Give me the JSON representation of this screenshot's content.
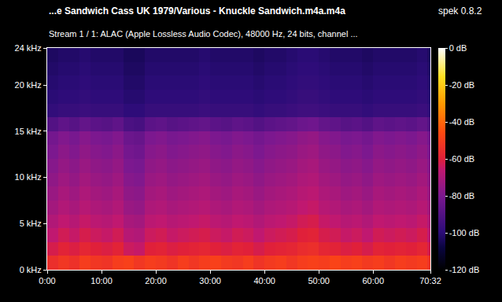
{
  "chart_data": {
    "type": "heatmap",
    "title": "...e Sandwich Cass UK 1979/Various - Knuckle Sandwich.m4a.m4a",
    "subtitle": "Stream 1 / 1: ALAC (Apple Lossless Audio Codec), 48000 Hz, 24 bits, channel ...",
    "annotations": [
      "spek 0.8.2"
    ],
    "x_bins": [
      0,
      120,
      240,
      360,
      480,
      600,
      720,
      840,
      960,
      1080,
      1200,
      1320,
      1440,
      1560,
      1680,
      1800,
      1920,
      2040,
      2160,
      2280,
      2400,
      2520,
      2640,
      2760,
      2880,
      3000,
      3120,
      3240,
      3360,
      3480,
      3600,
      3720,
      3840,
      3960,
      4080,
      4200,
      4232
    ],
    "y_bins": [
      0,
      1.5,
      3,
      4.5,
      6,
      7.5,
      9,
      10.5,
      12,
      13.5,
      15,
      16.5,
      18,
      19.5,
      21,
      22.5,
      24
    ],
    "cells": [
      [
        -55,
        -52,
        -54,
        -50,
        -52,
        -53,
        -50,
        -49,
        -52,
        -50,
        -51,
        -53,
        -50,
        -52,
        -50,
        -49,
        -51,
        -52,
        -50,
        -53,
        -51,
        -50,
        -52,
        -50,
        -49,
        -50,
        -48,
        -50,
        -49,
        -51,
        -50,
        -52,
        -50,
        -51,
        -50,
        -53
      ],
      [
        -62,
        -59,
        -61,
        -58,
        -60,
        -61,
        -59,
        -64,
        -65,
        -60,
        -59,
        -61,
        -60,
        -59,
        -58,
        -60,
        -61,
        -59,
        -60,
        -62,
        -60,
        -59,
        -58,
        -56,
        -55,
        -58,
        -59,
        -61,
        -60,
        -62,
        -59,
        -60,
        -59,
        -60,
        -58,
        -62
      ],
      [
        -66,
        -63,
        -65,
        -62,
        -64,
        -65,
        -63,
        -68,
        -69,
        -64,
        -63,
        -65,
        -64,
        -63,
        -62,
        -64,
        -65,
        -63,
        -64,
        -66,
        -64,
        -63,
        -62,
        -60,
        -59,
        -62,
        -63,
        -65,
        -64,
        -66,
        -63,
        -64,
        -63,
        -64,
        -62,
        -66
      ],
      [
        -69,
        -66,
        -68,
        -65,
        -67,
        -68,
        -66,
        -71,
        -72,
        -67,
        -66,
        -68,
        -67,
        -66,
        -65,
        -67,
        -68,
        -66,
        -67,
        -69,
        -67,
        -66,
        -65,
        -63,
        -62,
        -65,
        -66,
        -68,
        -67,
        -69,
        -66,
        -67,
        -66,
        -67,
        -65,
        -69
      ],
      [
        -72,
        -69,
        -71,
        -68,
        -70,
        -71,
        -69,
        -74,
        -75,
        -70,
        -69,
        -71,
        -70,
        -69,
        -68,
        -70,
        -71,
        -69,
        -70,
        -72,
        -70,
        -69,
        -68,
        -66,
        -65,
        -68,
        -69,
        -71,
        -70,
        -72,
        -69,
        -70,
        -69,
        -70,
        -68,
        -72
      ],
      [
        -74,
        -71,
        -73,
        -70,
        -72,
        -73,
        -71,
        -76,
        -77,
        -72,
        -71,
        -73,
        -72,
        -71,
        -70,
        -72,
        -73,
        -71,
        -72,
        -74,
        -72,
        -71,
        -70,
        -68,
        -67,
        -70,
        -71,
        -73,
        -72,
        -74,
        -71,
        -72,
        -71,
        -72,
        -70,
        -74
      ],
      [
        -76,
        -73,
        -75,
        -72,
        -74,
        -75,
        -73,
        -78,
        -79,
        -74,
        -73,
        -75,
        -74,
        -73,
        -72,
        -74,
        -75,
        -73,
        -74,
        -76,
        -74,
        -73,
        -72,
        -70,
        -69,
        -72,
        -73,
        -75,
        -74,
        -76,
        -73,
        -74,
        -73,
        -74,
        -72,
        -76
      ],
      [
        -78,
        -75,
        -77,
        -74,
        -76,
        -77,
        -75,
        -80,
        -81,
        -76,
        -75,
        -77,
        -76,
        -75,
        -74,
        -76,
        -77,
        -75,
        -76,
        -78,
        -76,
        -75,
        -74,
        -72,
        -71,
        -74,
        -75,
        -77,
        -76,
        -78,
        -75,
        -76,
        -75,
        -76,
        -74,
        -78
      ],
      [
        -80,
        -77,
        -79,
        -76,
        -78,
        -79,
        -77,
        -82,
        -83,
        -78,
        -77,
        -79,
        -78,
        -77,
        -76,
        -78,
        -79,
        -77,
        -78,
        -80,
        -78,
        -77,
        -76,
        -74,
        -73,
        -76,
        -77,
        -79,
        -78,
        -80,
        -77,
        -78,
        -77,
        -78,
        -76,
        -80
      ],
      [
        -82,
        -79,
        -81,
        -78,
        -80,
        -81,
        -79,
        -84,
        -85,
        -80,
        -79,
        -81,
        -80,
        -79,
        -78,
        -80,
        -81,
        -79,
        -80,
        -82,
        -80,
        -79,
        -78,
        -76,
        -75,
        -78,
        -79,
        -81,
        -80,
        -82,
        -79,
        -80,
        -79,
        -80,
        -78,
        -82
      ],
      [
        -90,
        -87,
        -89,
        -86,
        -88,
        -89,
        -87,
        -92,
        -93,
        -88,
        -87,
        -89,
        -88,
        -87,
        -86,
        -88,
        -89,
        -87,
        -88,
        -90,
        -88,
        -87,
        -86,
        -84,
        -83,
        -86,
        -87,
        -89,
        -88,
        -90,
        -87,
        -88,
        -87,
        -88,
        -86,
        -90
      ],
      [
        -98,
        -97,
        -97,
        -96,
        -97,
        -97,
        -97,
        -99,
        -99,
        -97,
        -97,
        -97,
        -97,
        -97,
        -96,
        -97,
        -97,
        -97,
        -97,
        -98,
        -97,
        -97,
        -96,
        -95,
        -95,
        -96,
        -97,
        -97,
        -97,
        -98,
        -97,
        -97,
        -97,
        -97,
        -96,
        -98
      ],
      [
        -100,
        -99,
        -99,
        -98,
        -99,
        -99,
        -99,
        -101,
        -101,
        -99,
        -99,
        -99,
        -99,
        -99,
        -98,
        -99,
        -99,
        -99,
        -99,
        -100,
        -99,
        -99,
        -98,
        -97,
        -97,
        -98,
        -99,
        -99,
        -99,
        -100,
        -99,
        -99,
        -99,
        -99,
        -98,
        -100
      ],
      [
        -101,
        -100,
        -100,
        -99,
        -100,
        -100,
        -100,
        -102,
        -102,
        -100,
        -100,
        -100,
        -100,
        -100,
        -99,
        -100,
        -100,
        -100,
        -100,
        -101,
        -100,
        -100,
        -99,
        -98,
        -98,
        -99,
        -100,
        -100,
        -100,
        -101,
        -100,
        -100,
        -100,
        -100,
        -99,
        -101
      ],
      [
        -102,
        -101,
        -101,
        -100,
        -101,
        -101,
        -101,
        -103,
        -103,
        -101,
        -101,
        -101,
        -101,
        -101,
        -100,
        -101,
        -101,
        -101,
        -101,
        -102,
        -101,
        -101,
        -100,
        -99,
        -99,
        -100,
        -101,
        -101,
        -101,
        -102,
        -101,
        -101,
        -101,
        -101,
        -100,
        -102
      ],
      [
        -103,
        -102,
        -102,
        -101,
        -102,
        -102,
        -102,
        -104,
        -104,
        -102,
        -102,
        -102,
        -102,
        -102,
        -101,
        -102,
        -102,
        -102,
        -102,
        -103,
        -102,
        -102,
        -101,
        -100,
        -100,
        -101,
        -102,
        -102,
        -102,
        -103,
        -102,
        -102,
        -102,
        -102,
        -101,
        -103
      ]
    ],
    "xlim": [
      0,
      4232
    ],
    "xticks": [
      {
        "value": 0,
        "label": "0:00"
      },
      {
        "value": 600,
        "label": "10:00"
      },
      {
        "value": 1200,
        "label": "20:00"
      },
      {
        "value": 1800,
        "label": "30:00"
      },
      {
        "value": 2400,
        "label": "40:00"
      },
      {
        "value": 3000,
        "label": "50:00"
      },
      {
        "value": 3600,
        "label": "60:00"
      },
      {
        "value": 4232,
        "label": "70:32"
      }
    ],
    "ylim": [
      0,
      24
    ],
    "yticks": [
      {
        "value": 0,
        "label": "0 kHz"
      },
      {
        "value": 5,
        "label": "5 kHz"
      },
      {
        "value": 10,
        "label": "10 kHz"
      },
      {
        "value": 15,
        "label": "15 kHz"
      },
      {
        "value": 20,
        "label": "20 kHz"
      },
      {
        "value": 24,
        "label": "24 kHz"
      }
    ],
    "clim": [
      -120,
      0
    ],
    "cticks": [
      {
        "value": 0,
        "label": "0 dB"
      },
      {
        "value": -20,
        "label": "-20 dB"
      },
      {
        "value": -40,
        "label": "-40 dB"
      },
      {
        "value": -60,
        "label": "-60 dB"
      },
      {
        "value": -80,
        "label": "-80 dB"
      },
      {
        "value": -100,
        "label": "-100 dB"
      },
      {
        "value": -120,
        "label": "-120 dB"
      }
    ],
    "grid": false
  }
}
